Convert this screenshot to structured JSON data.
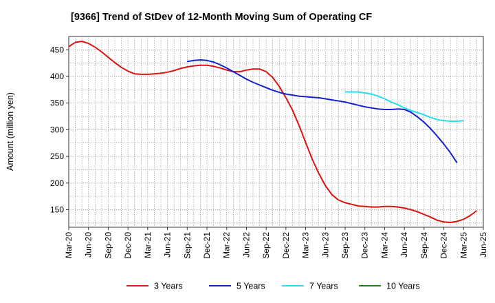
{
  "chart_data": {
    "type": "line",
    "title": "[9366]  Trend of StDev of 12-Month Moving Sum of Operating CF",
    "xlabel": "",
    "ylabel": "Amount (million yen)",
    "ylim": [
      117,
      475
    ],
    "yticks": [
      150,
      200,
      250,
      300,
      350,
      400,
      450
    ],
    "x_ticks": [
      "Mar-20",
      "Jun-20",
      "Sep-20",
      "Dec-20",
      "Mar-21",
      "Jun-21",
      "Sep-21",
      "Dec-21",
      "Mar-22",
      "Jun-22",
      "Sep-22",
      "Dec-22",
      "Mar-23",
      "Jun-23",
      "Sep-23",
      "Dec-23",
      "Mar-24",
      "Jun-24",
      "Sep-24",
      "Dec-24",
      "Mar-25",
      "Jun-25"
    ],
    "grid": true,
    "legend_position": "bottom",
    "series": [
      {
        "name": "3 Years",
        "color": "#dd1111",
        "start_index": 0,
        "values": [
          456,
          464,
          466,
          462,
          455,
          446,
          436,
          426,
          417,
          410,
          405,
          404,
          404,
          405,
          406,
          408,
          411,
          415,
          418,
          420,
          421,
          421,
          419,
          416,
          412,
          409,
          409,
          412,
          414,
          414,
          409,
          398,
          381,
          360,
          337,
          308,
          276,
          245,
          218,
          195,
          178,
          168,
          163,
          160,
          157,
          156,
          155,
          155,
          156,
          156,
          155,
          153,
          150,
          146,
          141,
          136,
          130,
          127,
          126,
          128,
          132,
          139,
          148
        ]
      },
      {
        "name": "5 Years",
        "color": "#1122cc",
        "start_index": 18,
        "values": [
          428,
          430,
          431,
          430,
          427,
          422,
          416,
          409,
          402,
          395,
          389,
          384,
          379,
          374,
          370,
          367,
          365,
          363,
          362,
          361,
          360,
          358,
          356,
          354,
          352,
          349,
          346,
          343,
          341,
          339,
          338,
          338,
          339,
          338,
          333,
          324,
          314,
          302,
          288,
          273,
          257,
          238
        ]
      },
      {
        "name": "7 Years",
        "color": "#22ddee",
        "start_index": 42,
        "values": [
          371,
          371,
          371,
          369,
          367,
          363,
          358,
          352,
          347,
          341,
          336,
          332,
          328,
          323,
          319,
          317,
          316,
          316,
          317
        ]
      },
      {
        "name": "10 Years",
        "color": "#118811",
        "start_index": 0,
        "values": []
      }
    ]
  }
}
